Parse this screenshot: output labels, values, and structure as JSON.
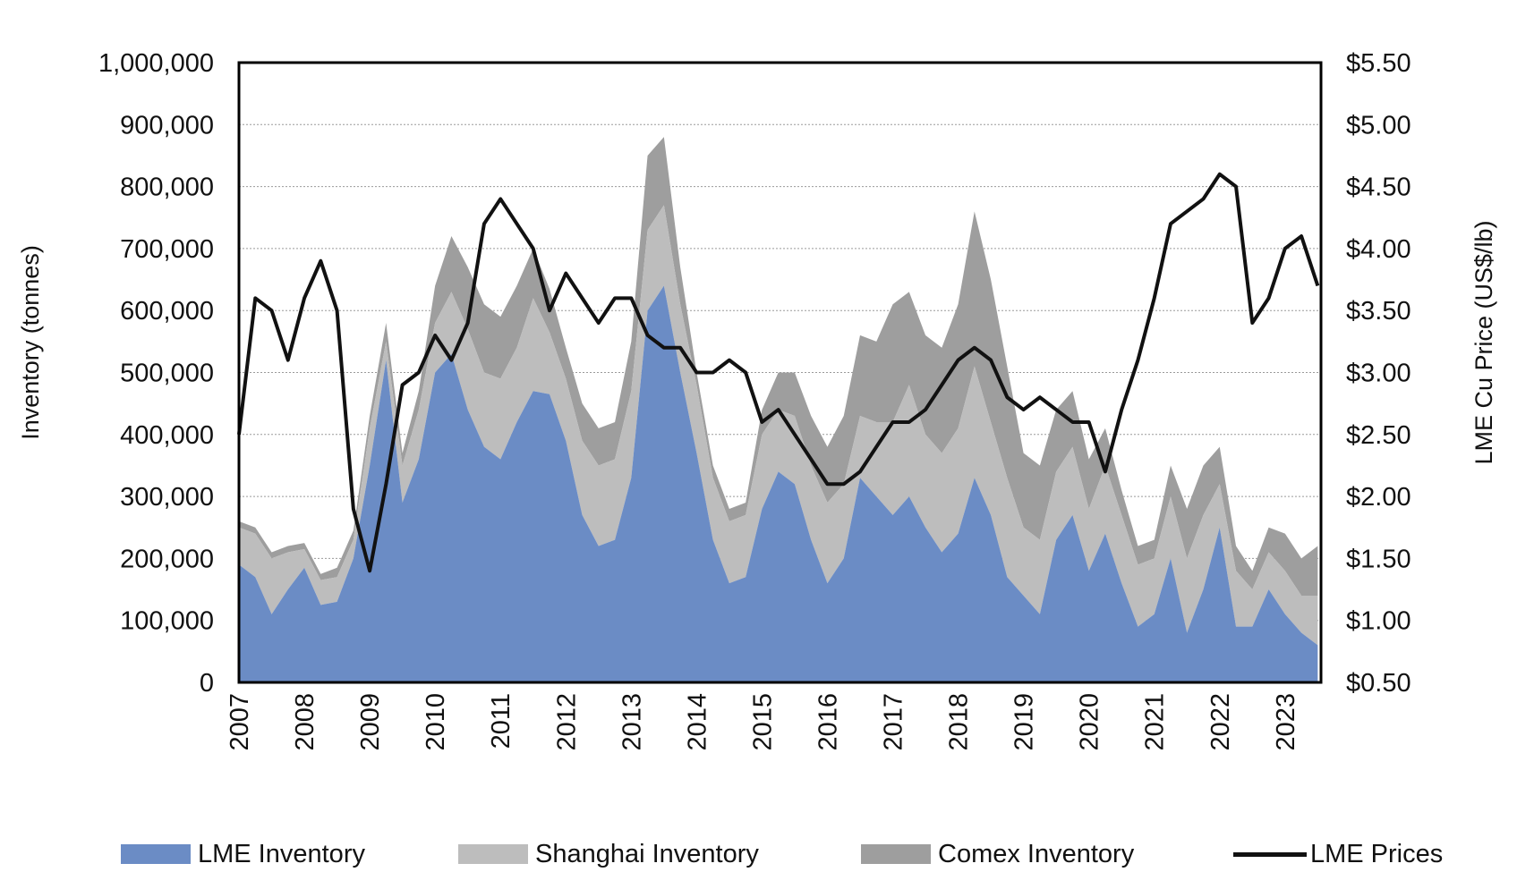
{
  "chart_data": {
    "type": "area",
    "title": "",
    "ylabel": "Inventory (tonnes)",
    "y2label": "LME Cu Price (US$/lb)",
    "xlabel": "",
    "ylim": [
      0,
      1000000
    ],
    "y2lim": [
      0.5,
      5.5
    ],
    "xlim": [
      2007.0,
      2023.55
    ],
    "grid": true,
    "legend_position": "bottom",
    "x_tick_labels": [
      "2007",
      "2008",
      "2009",
      "2010",
      "2011",
      "2012",
      "2013",
      "2014",
      "2015",
      "2016",
      "2017",
      "2018",
      "2019",
      "2020",
      "2021",
      "2022",
      "2023"
    ],
    "y_tick_labels": [
      "0",
      "100,000",
      "200,000",
      "300,000",
      "400,000",
      "500,000",
      "600,000",
      "700,000",
      "800,000",
      "900,000",
      "1,000,000"
    ],
    "y2_tick_labels": [
      "$0.50",
      "$1.00",
      "$1.50",
      "$2.00",
      "$2.50",
      "$3.00",
      "$3.50",
      "$4.00",
      "$4.50",
      "$5.00",
      "$5.50"
    ],
    "x": [
      2007.0,
      2007.25,
      2007.5,
      2007.75,
      2008.0,
      2008.25,
      2008.5,
      2008.75,
      2009.0,
      2009.25,
      2009.5,
      2009.75,
      2010.0,
      2010.25,
      2010.5,
      2010.75,
      2011.0,
      2011.25,
      2011.5,
      2011.75,
      2012.0,
      2012.25,
      2012.5,
      2012.75,
      2013.0,
      2013.25,
      2013.5,
      2013.75,
      2014.0,
      2014.25,
      2014.5,
      2014.75,
      2015.0,
      2015.25,
      2015.5,
      2015.75,
      2016.0,
      2016.25,
      2016.5,
      2016.75,
      2017.0,
      2017.25,
      2017.5,
      2017.75,
      2018.0,
      2018.25,
      2018.5,
      2018.75,
      2019.0,
      2019.25,
      2019.5,
      2019.75,
      2020.0,
      2020.25,
      2020.5,
      2020.75,
      2021.0,
      2021.25,
      2021.5,
      2021.75,
      2022.0,
      2022.25,
      2022.5,
      2022.75,
      2023.0,
      2023.25,
      2023.5
    ],
    "series": [
      {
        "name": "LME Inventory",
        "kind": "stacked-area",
        "color": "#6b8cc5",
        "values": [
          190000,
          170000,
          110000,
          150000,
          185000,
          125000,
          130000,
          200000,
          350000,
          520000,
          290000,
          360000,
          500000,
          530000,
          440000,
          380000,
          360000,
          420000,
          470000,
          465000,
          390000,
          270000,
          220000,
          230000,
          330000,
          600000,
          640000,
          500000,
          370000,
          230000,
          160000,
          170000,
          280000,
          340000,
          320000,
          230000,
          160000,
          200000,
          330000,
          300000,
          270000,
          300000,
          250000,
          210000,
          240000,
          330000,
          270000,
          170000,
          140000,
          110000,
          230000,
          270000,
          180000,
          240000,
          160000,
          90000,
          110000,
          200000,
          80000,
          150000,
          250000,
          90000,
          90000,
          150000,
          110000,
          80000,
          60000
        ]
      },
      {
        "name": "Shanghai Inventory",
        "kind": "stacked-area",
        "color": "#bdbdbd",
        "values": [
          60000,
          70000,
          90000,
          60000,
          30000,
          40000,
          40000,
          30000,
          60000,
          30000,
          60000,
          80000,
          80000,
          100000,
          130000,
          120000,
          130000,
          120000,
          150000,
          100000,
          100000,
          120000,
          130000,
          130000,
          140000,
          130000,
          130000,
          110000,
          110000,
          100000,
          100000,
          100000,
          120000,
          100000,
          110000,
          120000,
          130000,
          120000,
          100000,
          120000,
          150000,
          180000,
          150000,
          160000,
          170000,
          180000,
          150000,
          160000,
          110000,
          120000,
          110000,
          110000,
          100000,
          110000,
          110000,
          100000,
          90000,
          100000,
          120000,
          120000,
          70000,
          90000,
          60000,
          60000,
          70000,
          60000,
          80000
        ]
      },
      {
        "name": "Comex Inventory",
        "kind": "stacked-area",
        "color": "#9e9e9e",
        "values": [
          10000,
          10000,
          10000,
          10000,
          10000,
          10000,
          15000,
          15000,
          20000,
          30000,
          20000,
          30000,
          60000,
          90000,
          100000,
          110000,
          100000,
          100000,
          80000,
          70000,
          50000,
          60000,
          60000,
          60000,
          80000,
          120000,
          110000,
          60000,
          20000,
          20000,
          20000,
          20000,
          40000,
          60000,
          70000,
          80000,
          90000,
          110000,
          130000,
          130000,
          190000,
          150000,
          160000,
          170000,
          200000,
          250000,
          230000,
          180000,
          120000,
          120000,
          100000,
          90000,
          80000,
          60000,
          40000,
          30000,
          30000,
          50000,
          80000,
          80000,
          60000,
          40000,
          30000,
          40000,
          60000,
          60000,
          80000
        ]
      },
      {
        "name": "LME Prices",
        "kind": "line",
        "axis": "right",
        "color": "#111111",
        "values": [
          2.5,
          3.6,
          3.5,
          3.1,
          3.6,
          3.9,
          3.5,
          1.9,
          1.4,
          2.1,
          2.9,
          3.0,
          3.3,
          3.1,
          3.4,
          4.2,
          4.4,
          4.2,
          4.0,
          3.5,
          3.8,
          3.6,
          3.4,
          3.6,
          3.6,
          3.3,
          3.2,
          3.2,
          3.0,
          3.0,
          3.1,
          3.0,
          2.6,
          2.7,
          2.5,
          2.3,
          2.1,
          2.1,
          2.2,
          2.4,
          2.6,
          2.6,
          2.7,
          2.9,
          3.1,
          3.2,
          3.1,
          2.8,
          2.7,
          2.8,
          2.7,
          2.6,
          2.6,
          2.2,
          2.7,
          3.1,
          3.6,
          4.2,
          4.3,
          4.4,
          4.6,
          4.5,
          3.4,
          3.6,
          4.0,
          4.1,
          3.7
        ]
      }
    ]
  }
}
